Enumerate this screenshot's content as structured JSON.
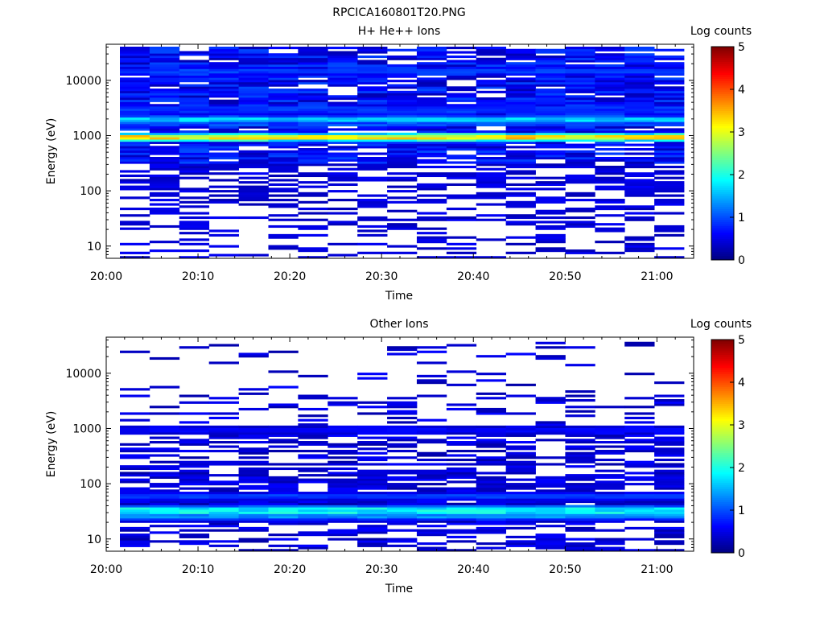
{
  "figure": {
    "title": "RPCICA160801T20.PNG"
  },
  "colormap": [
    "#00007f",
    "#0000ff",
    "#007fff",
    "#00ffff",
    "#7fff7f",
    "#ffff00",
    "#ff7f00",
    "#ff0000",
    "#7f0000"
  ],
  "chart_data": [
    {
      "type": "heatmap",
      "title": "H+ He++ Ions",
      "xlabel": "Time",
      "ylabel": "Energy (eV)",
      "x_ticks": [
        "20:00",
        "20:10",
        "20:20",
        "20:30",
        "20:40",
        "20:50",
        "21:00"
      ],
      "y_ticks": [
        "10",
        "100",
        "1000",
        "10000"
      ],
      "y_scale": "log",
      "x_range_minutes": [
        0,
        64
      ],
      "y_range_eV": [
        6,
        45000
      ],
      "time_bins": 19,
      "energy_bins": 96,
      "colorbar": {
        "label": "Log counts",
        "ticks": [
          "0",
          "1",
          "2",
          "3",
          "4",
          "5"
        ],
        "range": [
          0,
          5
        ]
      },
      "bands": [
        {
          "energy_eV": 950,
          "log_counts": 3.1
        },
        {
          "energy_eV": 1900,
          "log_counts": 1.6
        },
        {
          "energy_eV": 15000,
          "log_counts": 0.9
        },
        {
          "energy_eV": 3000,
          "log_counts": 0.8
        }
      ]
    },
    {
      "type": "heatmap",
      "title": "Other Ions",
      "xlabel": "Time",
      "ylabel": "Energy (eV)",
      "x_ticks": [
        "20:00",
        "20:10",
        "20:20",
        "20:30",
        "20:40",
        "20:50",
        "21:00"
      ],
      "y_ticks": [
        "10",
        "100",
        "1000",
        "10000"
      ],
      "y_scale": "log",
      "x_range_minutes": [
        0,
        64
      ],
      "y_range_eV": [
        6,
        45000
      ],
      "time_bins": 19,
      "energy_bins": 96,
      "colorbar": {
        "label": "Log counts",
        "ticks": [
          "0",
          "1",
          "2",
          "3",
          "4",
          "5"
        ],
        "range": [
          0,
          5
        ]
      },
      "bands": [
        {
          "energy_eV": 33,
          "log_counts": 1.8
        },
        {
          "energy_eV": 27,
          "log_counts": 1.3
        },
        {
          "energy_eV": 950,
          "log_counts": 0.6
        },
        {
          "energy_eV": 60,
          "log_counts": 0.9
        }
      ]
    }
  ]
}
